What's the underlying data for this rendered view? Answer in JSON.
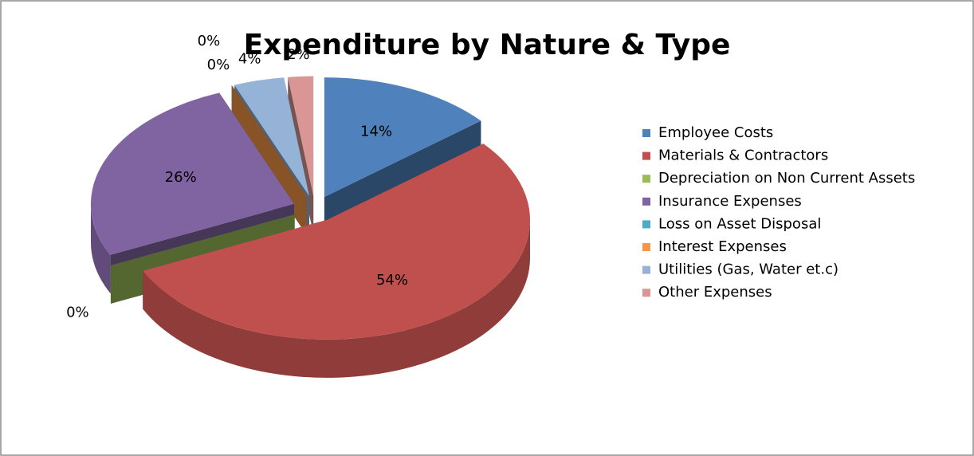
{
  "chart_data": {
    "type": "pie",
    "title": "Expenditure by Nature & Type",
    "categories": [
      "Employee Costs",
      "Materials & Contractors",
      "Depreciation on Non Current Assets",
      "Insurance Expenses",
      "Loss on Asset Disposal",
      "Interest Expenses",
      "Utilities (Gas, Water et.c)",
      "Other Expenses"
    ],
    "values": [
      14,
      54,
      0,
      26,
      0,
      0,
      4,
      2
    ],
    "value_labels": [
      "14%",
      "54%",
      "0%",
      "26%",
      "0%",
      "0%",
      "4%",
      "2%"
    ],
    "colors": [
      "#4f81bd",
      "#c0504d",
      "#9bbb59",
      "#8064a2",
      "#4bacc6",
      "#f79646",
      "#95b3d7",
      "#d99694"
    ],
    "legend": "right"
  }
}
